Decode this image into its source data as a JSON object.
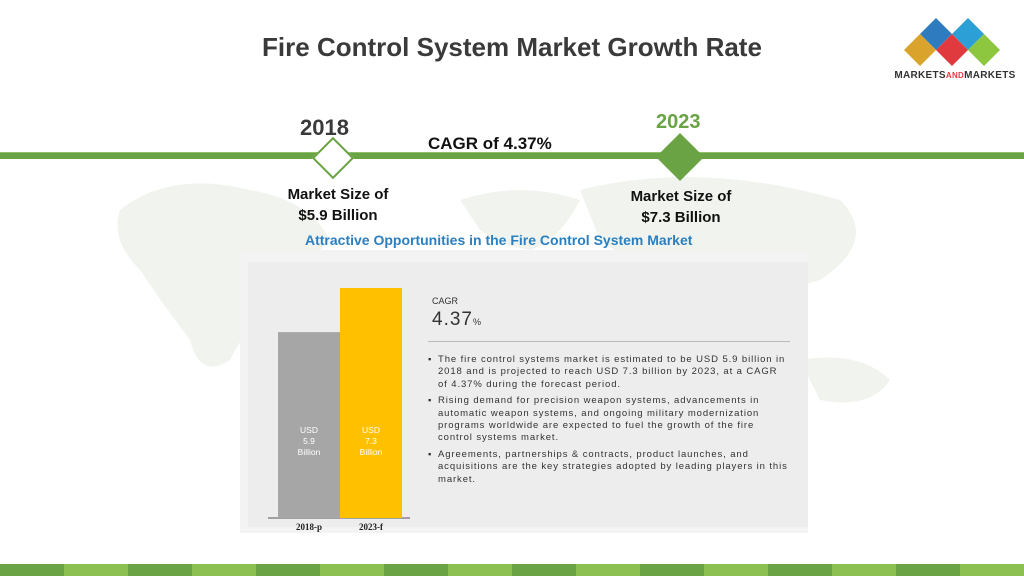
{
  "title": "Fire Control System Market Growth Rate",
  "logo": {
    "text_main": "MARKETS",
    "text_and": "AND",
    "text_end": "MARKETS"
  },
  "timeline": {
    "year_start": "2018",
    "year_end": "2023",
    "cagr_text": "CAGR of 4.37%",
    "market_start_line1": "Market Size of",
    "market_start_line2": "$5.9 Billion",
    "market_end_line1": "Market Size of",
    "market_end_line2": "$7.3 Billion"
  },
  "panel": {
    "heading": "Attractive Opportunities in the Fire Control System Market",
    "cagr_label": "CAGR",
    "cagr_value": "4.37",
    "cagr_unit": "%",
    "bullets": [
      "The fire control systems market is estimated to be USD 5.9 billion in 2018 and is projected to reach USD 7.3 billion by 2023, at a CAGR of 4.37% during the forecast period.",
      "Rising demand for precision weapon systems, advancements in automatic weapon systems, and ongoing military modernization programs worldwide are expected to fuel the growth of the fire control systems market.",
      "Agreements, partnerships & contracts, product launches, and acquisitions are the key strategies adopted by leading players in this market."
    ]
  },
  "chart_data": {
    "type": "bar",
    "categories": [
      "2018-p",
      "2023-f"
    ],
    "values": [
      5.9,
      7.3
    ],
    "bar_labels": [
      [
        "USD",
        "5.9",
        "Billion"
      ],
      [
        "USD",
        "7.3",
        "Billion"
      ]
    ],
    "colors": [
      "#a6a6a6",
      "#ffc000"
    ],
    "title": "",
    "xlabel": "",
    "ylabel": ""
  },
  "colors": {
    "accent_green": "#6aa344",
    "heading_blue": "#2a7fc0"
  }
}
